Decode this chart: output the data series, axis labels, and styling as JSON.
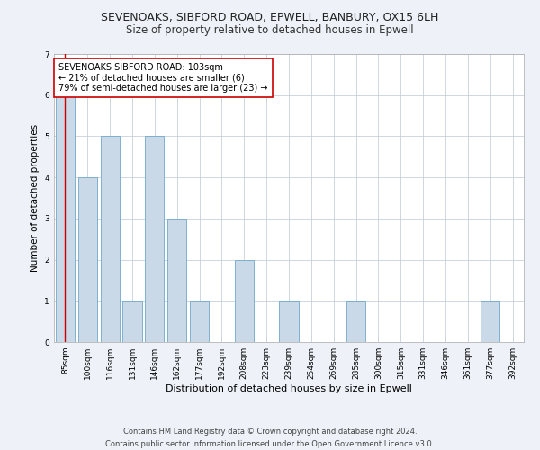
{
  "title": "SEVENOAKS, SIBFORD ROAD, EPWELL, BANBURY, OX15 6LH",
  "subtitle": "Size of property relative to detached houses in Epwell",
  "xlabel": "Distribution of detached houses by size in Epwell",
  "ylabel": "Number of detached properties",
  "categories": [
    "85sqm",
    "100sqm",
    "116sqm",
    "131sqm",
    "146sqm",
    "162sqm",
    "177sqm",
    "192sqm",
    "208sqm",
    "223sqm",
    "239sqm",
    "254sqm",
    "269sqm",
    "285sqm",
    "300sqm",
    "315sqm",
    "331sqm",
    "346sqm",
    "361sqm",
    "377sqm",
    "392sqm"
  ],
  "values": [
    6,
    4,
    5,
    1,
    5,
    3,
    1,
    0,
    2,
    0,
    1,
    0,
    0,
    1,
    0,
    0,
    0,
    0,
    0,
    1,
    0
  ],
  "bar_color": "#c9d9e8",
  "bar_edge_color": "#6fa8c8",
  "subject_line_color": "#cc0000",
  "annotation_text": "SEVENOAKS SIBFORD ROAD: 103sqm\n← 21% of detached houses are smaller (6)\n79% of semi-detached houses are larger (23) →",
  "annotation_box_color": "#ffffff",
  "annotation_box_edge_color": "#cc0000",
  "ylim": [
    0,
    7
  ],
  "yticks": [
    0,
    1,
    2,
    3,
    4,
    5,
    6,
    7
  ],
  "footer_text": "Contains HM Land Registry data © Crown copyright and database right 2024.\nContains public sector information licensed under the Open Government Licence v3.0.",
  "bg_color": "#eef2f8",
  "plot_bg_color": "#ffffff",
  "grid_color": "#c8d0dc",
  "title_fontsize": 9,
  "subtitle_fontsize": 8.5,
  "xlabel_fontsize": 8,
  "ylabel_fontsize": 7.5,
  "tick_fontsize": 6.5,
  "annotation_fontsize": 7,
  "footer_fontsize": 6
}
